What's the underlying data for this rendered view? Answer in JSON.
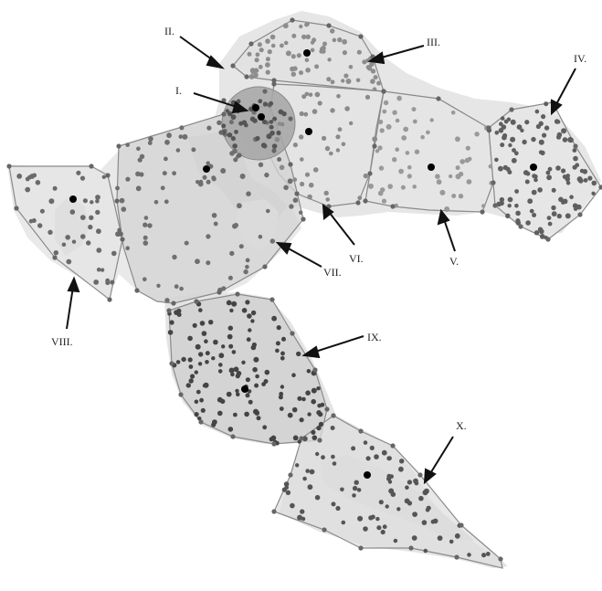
{
  "map": {
    "region_labels": [
      "I.",
      "II.",
      "III.",
      "IV.",
      "V.",
      "VI.",
      "VII.",
      "VIII.",
      "IX.",
      "X."
    ]
  },
  "colors": {
    "land_light": "#e9e9e9",
    "land_mid": "#dcdcdc",
    "land_dark": "#c9c9c9",
    "polygon_fill": "#d3d3d3",
    "polygon_stroke": "#8a8a8a",
    "dot": "#6b6b6b",
    "dot_dark": "#3a3a3a",
    "center": "#000000",
    "circle_fill": "#a9a9a9"
  }
}
